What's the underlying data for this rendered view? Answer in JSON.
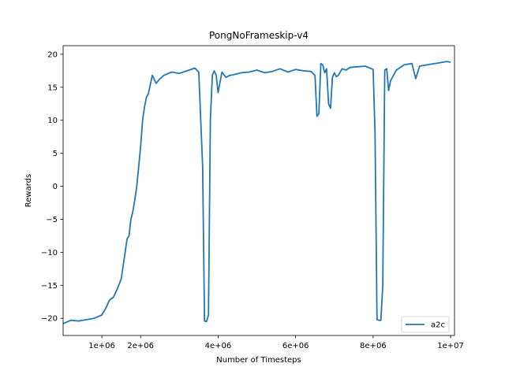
{
  "chart_data": {
    "type": "line",
    "title": "PongNoFrameskip-v4",
    "xlabel": "Number of Timesteps",
    "ylabel": "Rewards",
    "xlim": [
      0,
      10100000
    ],
    "ylim": [
      -22.6,
      21.3
    ],
    "xticks": [
      {
        "value": 1000000,
        "label": "1e+06"
      },
      {
        "value": 2000000,
        "label": "2e+06"
      },
      {
        "value": 4000000,
        "label": "4e+06"
      },
      {
        "value": 6000000,
        "label": "6e+06"
      },
      {
        "value": 8000000,
        "label": "8e+06"
      },
      {
        "value": 10000000,
        "label": "1e+07"
      }
    ],
    "yticks": [
      {
        "value": 20,
        "label": "20"
      },
      {
        "value": 15,
        "label": "15"
      },
      {
        "value": 10,
        "label": "10"
      },
      {
        "value": 5,
        "label": "5"
      },
      {
        "value": 0,
        "label": "0"
      },
      {
        "value": -5,
        "label": "−5"
      },
      {
        "value": -10,
        "label": "−10"
      },
      {
        "value": -15,
        "label": "−15"
      },
      {
        "value": -20,
        "label": "−20"
      }
    ],
    "legend": {
      "position": "lower-right"
    },
    "grid": false,
    "series": [
      {
        "name": "a2c",
        "color": "#1f77b4",
        "x": [
          0,
          200000,
          400000,
          600000,
          800000,
          1000000,
          1100000,
          1200000,
          1300000,
          1400000,
          1500000,
          1600000,
          1650000,
          1700000,
          1750000,
          1800000,
          1850000,
          1900000,
          1950000,
          2000000,
          2050000,
          2100000,
          2150000,
          2200000,
          2300000,
          2400000,
          2500000,
          2600000,
          2800000,
          3000000,
          3200000,
          3400000,
          3500000,
          3600000,
          3650000,
          3700000,
          3750000,
          3800000,
          3850000,
          3900000,
          3950000,
          4000000,
          4100000,
          4200000,
          4300000,
          4400000,
          4600000,
          4800000,
          5000000,
          5200000,
          5400000,
          5600000,
          5800000,
          6000000,
          6200000,
          6400000,
          6500000,
          6550000,
          6600000,
          6650000,
          6700000,
          6750000,
          6800000,
          6850000,
          6900000,
          6950000,
          7000000,
          7050000,
          7100000,
          7200000,
          7300000,
          7400000,
          7600000,
          7800000,
          8000000,
          8050000,
          8100000,
          8150000,
          8200000,
          8250000,
          8300000,
          8350000,
          8400000,
          8450000,
          8500000,
          8600000,
          8800000,
          9000000,
          9100000,
          9200000,
          9400000,
          9600000,
          9800000,
          9900000,
          10000000
        ],
        "values": [
          -20.8,
          -20.3,
          -20.4,
          -20.2,
          -20.0,
          -19.5,
          -18.5,
          -17.2,
          -16.8,
          -15.5,
          -14.0,
          -10.0,
          -8.0,
          -7.5,
          -5.0,
          -3.8,
          -2.0,
          0.0,
          3.0,
          6.0,
          10.0,
          12.0,
          13.5,
          14.0,
          16.8,
          15.6,
          16.3,
          16.8,
          17.3,
          17.1,
          17.5,
          17.9,
          17.3,
          3.0,
          -20.4,
          -20.5,
          -19.5,
          10.0,
          16.8,
          17.5,
          16.8,
          14.2,
          17.3,
          16.5,
          16.8,
          16.9,
          17.2,
          17.3,
          17.6,
          17.2,
          17.4,
          17.8,
          17.3,
          17.7,
          17.5,
          17.4,
          16.8,
          10.6,
          11.0,
          18.6,
          18.4,
          17.2,
          17.8,
          12.5,
          11.8,
          16.5,
          17.2,
          16.6,
          16.8,
          17.8,
          17.6,
          18.0,
          18.1,
          18.2,
          17.7,
          8.0,
          -20.2,
          -20.3,
          -20.3,
          -15.0,
          17.6,
          17.8,
          14.5,
          16.0,
          16.5,
          17.6,
          18.4,
          18.6,
          16.3,
          18.2,
          18.4,
          18.6,
          18.8,
          18.9,
          18.8
        ]
      }
    ]
  }
}
